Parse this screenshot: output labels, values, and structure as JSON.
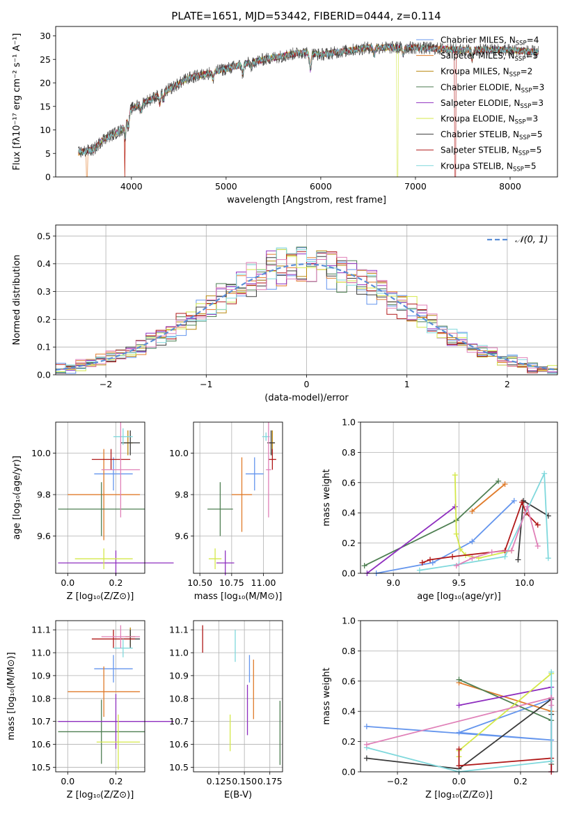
{
  "figure_title": "PLATE=1651, MJD=53442, FIBERID=0444, z=0.114",
  "colors": {
    "chabrier_miles": "#6495ed",
    "salpeter_miles": "#e07b2a",
    "kroupa_miles": "#b8860b",
    "chabrier_elodie": "#4e7f52",
    "salpeter_elodie": "#8e2ebf",
    "kroupa_elodie": "#d4e84a",
    "chabrier_stelib": "#3a3a3a",
    "salpeter_stelib": "#b01818",
    "kroupa_stelib": "#7fd8dc",
    "pink": "#e080b8",
    "gaussian": "#5b8ed6",
    "grid": "#b0b0b0"
  },
  "chart_data": [
    {
      "type": "line",
      "id": "spectrum",
      "xlabel": "wavelength [Angstrom, rest frame]",
      "ylabel": "Flux [fλ10⁻¹⁷ erg cm⁻² s⁻¹ A⁻¹]",
      "xlim": [
        3200,
        8500
      ],
      "ylim": [
        0,
        32
      ],
      "xticks": [
        "4000",
        "5000",
        "6000",
        "7000",
        "8000"
      ],
      "yticks": [
        "0",
        "5",
        "10",
        "15",
        "20",
        "25",
        "30"
      ],
      "x_range_data": [
        3440,
        8300
      ],
      "continuum_anchors": [
        [
          3440,
          5.2
        ],
        [
          3600,
          5.8
        ],
        [
          3700,
          8.0
        ],
        [
          3900,
          10.0
        ],
        [
          4000,
          14.5
        ],
        [
          4300,
          17.5
        ],
        [
          4600,
          21.0
        ],
        [
          5000,
          23.0
        ],
        [
          5400,
          25.0
        ],
        [
          5800,
          26.5
        ],
        [
          6000,
          26.0
        ],
        [
          6500,
          27.5
        ],
        [
          7000,
          27.5
        ],
        [
          7500,
          27.0
        ],
        [
          8000,
          27.0
        ],
        [
          8300,
          26.5
        ]
      ],
      "dips": [
        [
          3530,
          0.3
        ],
        [
          3930,
          0.0
        ],
        [
          6810,
          0.0
        ],
        [
          7420,
          0.0
        ]
      ],
      "legend": [
        "Chabrier MILES, N<sub>SSP</sub>=4",
        "Salpeter MILES, N<sub>SSP</sub>=5",
        "Kroupa MILES, N<sub>SSP</sub>=2",
        "Chabrier ELODIE, N<sub>SSP</sub>=3",
        "Salpeter ELODIE, N<sub>SSP</sub>=3",
        "Kroupa ELODIE, N<sub>SSP</sub>=3",
        "Chabrier STELIB, N<sub>SSP</sub>=5",
        "Salpeter STELIB, N<sub>SSP</sub>=5",
        "Kroupa STELIB, N<sub>SSP</sub>=5"
      ],
      "legend_texts": [
        {
          "name": "Chabrier MILES, N",
          "sub": "SSP",
          "tail": "=4"
        },
        {
          "name": "Salpeter MILES, N",
          "sub": "SSP",
          "tail": "=5"
        },
        {
          "name": "Kroupa MILES, N",
          "sub": "SSP",
          "tail": "=2"
        },
        {
          "name": "Chabrier ELODIE, N",
          "sub": "SSP",
          "tail": "=3"
        },
        {
          "name": "Salpeter ELODIE, N",
          "sub": "SSP",
          "tail": "=3"
        },
        {
          "name": "Kroupa ELODIE, N",
          "sub": "SSP",
          "tail": "=3"
        },
        {
          "name": "Chabrier STELIB, N",
          "sub": "SSP",
          "tail": "=5"
        },
        {
          "name": "Salpeter STELIB, N",
          "sub": "SSP",
          "tail": "=5"
        },
        {
          "name": "Kroupa STELIB, N",
          "sub": "SSP",
          "tail": "=5"
        }
      ],
      "legend_placement": "top-right"
    },
    {
      "type": "line",
      "id": "residuals",
      "xlabel": "(data-model)/error",
      "ylabel": "Normed distribution",
      "xlim": [
        -2.5,
        2.5
      ],
      "ylim": [
        0,
        0.54
      ],
      "xticks": [
        "−2",
        "−1",
        "0",
        "1",
        "2"
      ],
      "yticks": [
        "0.0",
        "0.1",
        "0.2",
        "0.3",
        "0.4",
        "0.5"
      ],
      "grid": true,
      "bin_width": 0.1,
      "legend": [
        "𝒩(0, 1)"
      ],
      "legend_placement": "top-right",
      "step_series_count": 9
    },
    {
      "type": "scatter",
      "id": "age_vs_Z",
      "xlabel": "Z [log₁₀(Z/Z⊙)]",
      "ylabel": "age  [log₁₀(age/yr)]",
      "xlim": [
        -0.05,
        0.32
      ],
      "ylim": [
        9.42,
        10.15
      ],
      "xticks": [
        "0.0",
        "0.2"
      ],
      "yticks": [
        "9.6",
        "9.8",
        "10.0"
      ],
      "grid": true,
      "points": [
        {
          "x": 0.19,
          "xerr": 0.08,
          "y": 9.9,
          "yerr": 0.08,
          "color": "#6495ed"
        },
        {
          "x": 0.15,
          "xerr": 0.15,
          "y": 9.8,
          "yerr": 0.22,
          "color": "#e07b2a"
        },
        {
          "x": 0.25,
          "xerr": 0.02,
          "y": 10.05,
          "yerr": 0.06,
          "color": "#b8860b"
        },
        {
          "x": 0.14,
          "xerr": 0.18,
          "y": 9.73,
          "yerr": 0.13,
          "color": "#4e7f52"
        },
        {
          "x": 0.2,
          "xerr": 0.24,
          "y": 9.47,
          "yerr": 0.06,
          "color": "#8e2ebf"
        },
        {
          "x": 0.15,
          "xerr": 0.12,
          "y": 9.49,
          "yerr": 0.05,
          "color": "#d4e84a"
        },
        {
          "x": 0.26,
          "xerr": 0.04,
          "y": 10.05,
          "yerr": 0.06,
          "color": "#3a3a3a"
        },
        {
          "x": 0.18,
          "xerr": 0.08,
          "y": 9.97,
          "yerr": 0.05,
          "color": "#b01818"
        },
        {
          "x": 0.23,
          "xerr": 0.04,
          "y": 10.08,
          "yerr": 0.04,
          "color": "#7fd8dc"
        },
        {
          "x": 0.22,
          "xerr": 0.08,
          "y": 9.92,
          "yerr": 0.23,
          "color": "#e080b8"
        }
      ]
    },
    {
      "type": "scatter",
      "id": "age_vs_mass",
      "xlabel": "mass [log₁₀(M/M⊙)]",
      "ylabel": "",
      "xlim": [
        10.45,
        11.15
      ],
      "ylim": [
        9.42,
        10.15
      ],
      "xticks": [
        "10.50",
        "10.75",
        "11.00"
      ],
      "yticks": [
        "9.6",
        "9.8",
        "10.0"
      ],
      "grid": true,
      "points": [
        {
          "x": 10.93,
          "xerr": 0.07,
          "y": 9.9,
          "yerr": 0.08,
          "color": "#6495ed"
        },
        {
          "x": 10.83,
          "xerr": 0.08,
          "y": 9.8,
          "yerr": 0.18,
          "color": "#e07b2a"
        },
        {
          "x": 11.07,
          "xerr": 0.02,
          "y": 10.05,
          "yerr": 0.06,
          "color": "#b8860b"
        },
        {
          "x": 10.66,
          "xerr": 0.1,
          "y": 9.73,
          "yerr": 0.13,
          "color": "#4e7f52"
        },
        {
          "x": 10.7,
          "xerr": 0.07,
          "y": 9.47,
          "yerr": 0.06,
          "color": "#8e2ebf"
        },
        {
          "x": 10.62,
          "xerr": 0.05,
          "y": 9.49,
          "yerr": 0.05,
          "color": "#d4e84a"
        },
        {
          "x": 11.06,
          "xerr": 0.03,
          "y": 10.05,
          "yerr": 0.06,
          "color": "#3a3a3a"
        },
        {
          "x": 11.07,
          "xerr": 0.03,
          "y": 9.97,
          "yerr": 0.05,
          "color": "#b01818"
        },
        {
          "x": 11.02,
          "xerr": 0.03,
          "y": 10.08,
          "yerr": 0.02,
          "color": "#7fd8dc"
        },
        {
          "x": 11.04,
          "xerr": 0.02,
          "y": 9.92,
          "yerr": 0.23,
          "color": "#e080b8"
        }
      ]
    },
    {
      "type": "line",
      "id": "weight_vs_age",
      "xlabel": "age  [log₁₀(age/yr)]",
      "ylabel": "mass weight",
      "xlim": [
        8.75,
        10.25
      ],
      "ylim": [
        0,
        1.0
      ],
      "xticks": [
        "9.0",
        "9.5",
        "10.0"
      ],
      "yticks": [
        "0.0",
        "0.2",
        "0.4",
        "0.6",
        "0.8",
        "1.0"
      ],
      "grid": true,
      "series": [
        {
          "color": "#6495ed",
          "x": [
            8.87,
            9.3,
            9.6,
            9.92
          ],
          "y": [
            0.0,
            0.07,
            0.21,
            0.48
          ]
        },
        {
          "color": "#e07b2a",
          "x": [
            9.6,
            9.85
          ],
          "y": [
            0.41,
            0.59
          ]
        },
        {
          "color": "#4e7f52",
          "x": [
            8.78,
            9.48,
            9.8
          ],
          "y": [
            0.05,
            0.35,
            0.61
          ]
        },
        {
          "color": "#8e2ebf",
          "x": [
            8.8,
            9.47
          ],
          "y": [
            0.0,
            0.44
          ]
        },
        {
          "color": "#d4e84a",
          "x": [
            9.47,
            9.48,
            9.51,
            9.55,
            9.65,
            9.9
          ],
          "y": [
            0.65,
            0.26,
            0.16,
            0.12,
            0.1,
            0.15
          ]
        },
        {
          "color": "#3a3a3a",
          "x": [
            9.95,
            9.99,
            10.18
          ],
          "y": [
            0.09,
            0.48,
            0.38
          ]
        },
        {
          "color": "#b01818",
          "x": [
            9.22,
            9.28,
            9.45,
            9.85,
            9.98,
            10.01,
            10.1
          ],
          "y": [
            0.07,
            0.09,
            0.11,
            0.15,
            0.47,
            0.4,
            0.32
          ]
        },
        {
          "color": "#7fd8dc",
          "x": [
            9.2,
            9.5,
            9.85,
            10.15,
            10.18
          ],
          "y": [
            0.02,
            0.06,
            0.11,
            0.66,
            0.1
          ]
        },
        {
          "color": "#e080b8",
          "x": [
            9.48,
            9.6,
            9.75,
            9.9,
            10.02,
            10.1
          ],
          "y": [
            0.05,
            0.1,
            0.14,
            0.15,
            0.44,
            0.18
          ]
        }
      ]
    },
    {
      "type": "scatter",
      "id": "mass_vs_Z",
      "xlabel": "Z [log₁₀(Z/Z⊙)]",
      "ylabel": "mass [log₁₀(M/M⊙)]",
      "xlim": [
        -0.05,
        0.32
      ],
      "ylim": [
        10.48,
        11.14
      ],
      "xticks": [
        "0.0",
        "0.2"
      ],
      "yticks": [
        "10.5",
        "10.6",
        "10.7",
        "10.8",
        "10.9",
        "11.0",
        "11.1"
      ],
      "grid": true,
      "points": [
        {
          "x": 0.19,
          "xerr": 0.08,
          "y": 10.93,
          "yerr": 0.06,
          "color": "#6495ed"
        },
        {
          "x": 0.15,
          "xerr": 0.15,
          "y": 10.83,
          "yerr": 0.11,
          "color": "#e07b2a"
        },
        {
          "x": 0.26,
          "xerr": 0.02,
          "y": 11.07,
          "yerr": 0.04,
          "color": "#b8860b"
        },
        {
          "x": 0.14,
          "xerr": 0.18,
          "y": 10.655,
          "yerr": 0.14,
          "color": "#4e7f52"
        },
        {
          "x": 0.2,
          "xerr": 0.24,
          "y": 10.7,
          "yerr": 0.12,
          "color": "#8e2ebf"
        },
        {
          "x": 0.21,
          "xerr": 0.09,
          "y": 10.61,
          "yerr": 0.12,
          "color": "#d4e84a"
        },
        {
          "x": 0.26,
          "xerr": 0.04,
          "y": 11.06,
          "yerr": 0.04,
          "color": "#3a3a3a"
        },
        {
          "x": 0.19,
          "xerr": 0.09,
          "y": 11.06,
          "yerr": 0.04,
          "color": "#b01818"
        },
        {
          "x": 0.23,
          "xerr": 0.04,
          "y": 11.02,
          "yerr": 0.04,
          "color": "#7fd8dc"
        },
        {
          "x": 0.22,
          "xerr": 0.08,
          "y": 11.07,
          "yerr": 0.05,
          "color": "#e080b8"
        }
      ]
    },
    {
      "type": "scatter",
      "id": "mass_vs_ebv",
      "xlabel": "E(B-V)",
      "ylabel": "",
      "xlim": [
        0.1,
        0.1875
      ],
      "ylim": [
        10.48,
        11.14
      ],
      "xticks": [
        "0.125",
        "0.150",
        "0.175"
      ],
      "yticks": [
        "10.5",
        "10.6",
        "10.7",
        "10.8",
        "10.9",
        "11.0",
        "11.1"
      ],
      "grid": true,
      "points": [
        {
          "x": 0.155,
          "y": 10.93,
          "yerr": 0.06,
          "color": "#6495ed"
        },
        {
          "x": 0.159,
          "y": 10.84,
          "yerr": 0.13,
          "color": "#e07b2a"
        },
        {
          "x": 0.185,
          "y": 10.65,
          "yerr": 0.14,
          "color": "#4e7f52"
        },
        {
          "x": 0.153,
          "y": 10.75,
          "yerr": 0.11,
          "color": "#8e2ebf"
        },
        {
          "x": 0.136,
          "y": 10.65,
          "yerr": 0.08,
          "color": "#d4e84a"
        },
        {
          "x": 0.109,
          "y": 11.06,
          "yerr": 0.06,
          "color": "#b01818"
        },
        {
          "x": 0.141,
          "y": 11.03,
          "yerr": 0.07,
          "color": "#7fd8dc"
        }
      ]
    },
    {
      "type": "line",
      "id": "weight_vs_Z",
      "xlabel": "Z [log₁₀(Z/Z⊙)]",
      "ylabel": "mass weight",
      "xlim": [
        -0.32,
        0.32
      ],
      "ylim": [
        0,
        1.0
      ],
      "xticks": [
        "−0.2",
        "0.0",
        "0.2"
      ],
      "yticks": [
        "0.0",
        "0.2",
        "0.4",
        "0.6",
        "0.8",
        "1.0"
      ],
      "grid": true,
      "series": [
        {
          "color": "#6495ed",
          "x": [
            -0.3,
            0.3,
            0.0,
            0.3
          ],
          "y": [
            0.3,
            0.21,
            0.26,
            0.48
          ]
        },
        {
          "color": "#e07b2a",
          "x": [
            0.0,
            0.3
          ],
          "y": [
            0.59,
            0.4
          ]
        },
        {
          "color": "#4e7f52",
          "x": [
            0.0,
            0.3,
            0.3
          ],
          "y": [
            0.61,
            0.34,
            0.05
          ]
        },
        {
          "color": "#8e2ebf",
          "x": [
            0.0,
            0.3,
            0.3
          ],
          "y": [
            0.44,
            0.56,
            0.0
          ]
        },
        {
          "color": "#d4e84a",
          "x": [
            0.0,
            0.0,
            0.3
          ],
          "y": [
            0.1,
            0.14,
            0.65
          ]
        },
        {
          "color": "#3a3a3a",
          "x": [
            -0.3,
            0.0,
            0.3,
            0.3
          ],
          "y": [
            0.09,
            0.02,
            0.48,
            0.38
          ]
        },
        {
          "color": "#b01818",
          "x": [
            0.0,
            0.0,
            0.3,
            0.3
          ],
          "y": [
            0.15,
            0.04,
            0.09,
            0.0
          ]
        },
        {
          "color": "#7fd8dc",
          "x": [
            -0.3,
            0.0,
            0.3,
            0.3
          ],
          "y": [
            0.16,
            0.0,
            0.07,
            0.66
          ]
        },
        {
          "color": "#e080b8",
          "x": [
            -0.3,
            0.3,
            0.3
          ],
          "y": [
            0.18,
            0.49,
            0.44
          ]
        }
      ]
    }
  ]
}
